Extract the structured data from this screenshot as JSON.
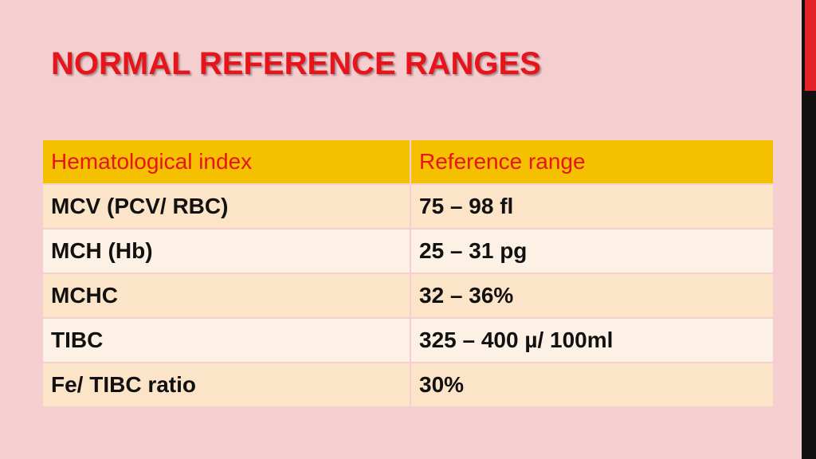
{
  "header": {
    "title": "NORMAL REFERENCE RANGES"
  },
  "table": {
    "columns": [
      "Hematological index",
      "Reference range"
    ],
    "rows": [
      [
        "MCV (PCV/ RBC)",
        "75 – 98 fl"
      ],
      [
        "MCH (Hb)",
        "25 – 31 pg"
      ],
      [
        "MCHC",
        "32 – 36%"
      ],
      [
        "TIBC",
        "325 – 400 µ/ 100ml"
      ],
      [
        "Fe/ TIBC ratio",
        "30%"
      ]
    ]
  }
}
